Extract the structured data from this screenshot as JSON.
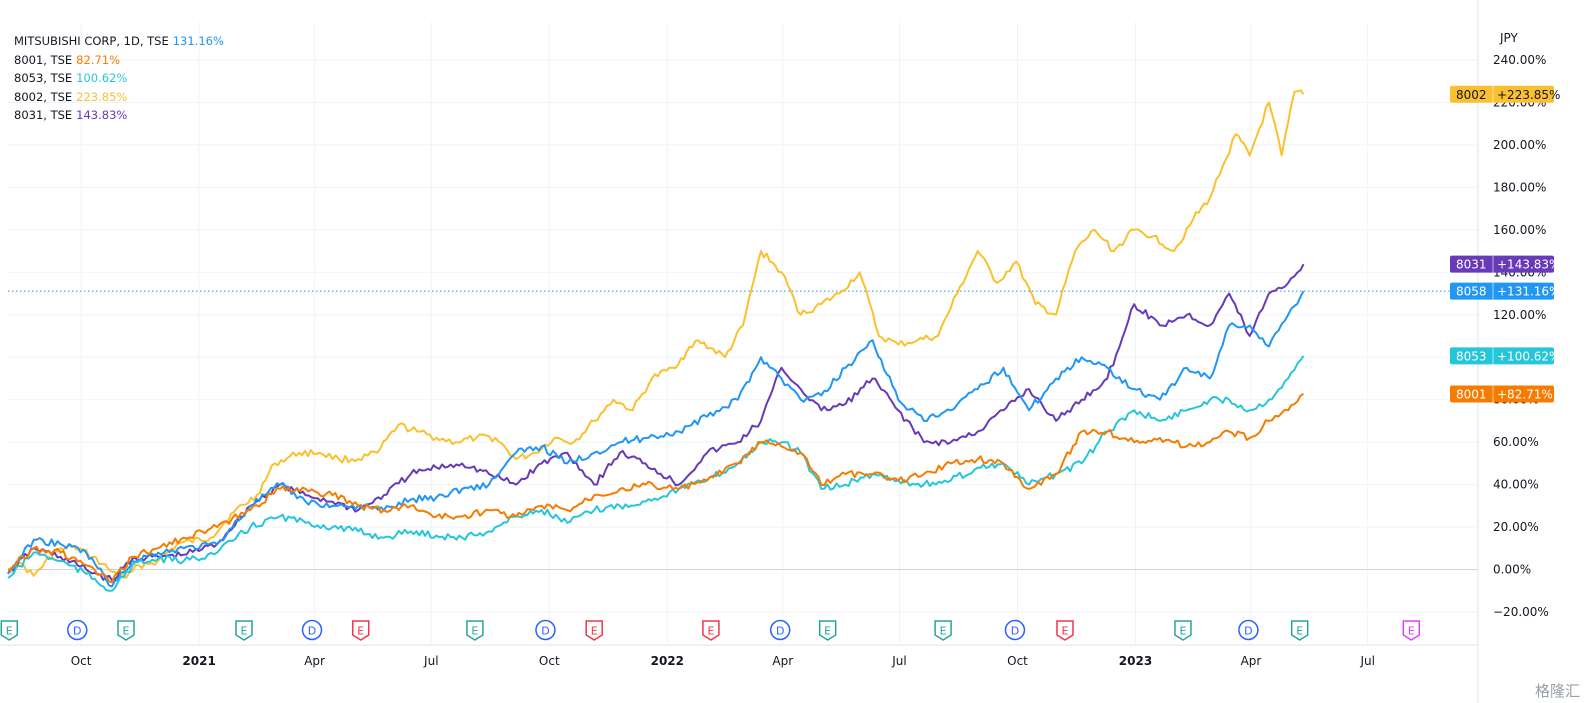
{
  "colors": {
    "grid": "#f0f3fa",
    "axis_text": "#131722",
    "zero_line": "#d0d3da",
    "dotted_line": "#2196f3",
    "earnings_icon": "#26a69a",
    "earnings_icon_red": "#f23645",
    "earnings_icon_pink": "#e040fb",
    "dividend_icon": "#2962ff",
    "watermark": "#9aa0aa"
  },
  "legend": [
    {
      "label": "MITSUBISHI CORP, 1D, TSE",
      "value": "131.16%",
      "color": "#2196f3"
    },
    {
      "label": "8001, TSE",
      "value": "82.71%",
      "color": "#f57c00"
    },
    {
      "label": "8053, TSE",
      "value": "100.62%",
      "color": "#26c6da"
    },
    {
      "label": "8002, TSE",
      "value": "223.85%",
      "color": "#fbc02d"
    },
    {
      "label": "8031, TSE",
      "value": "143.83%",
      "color": "#673ab7"
    }
  ],
  "axis": {
    "currency": "JPY"
  },
  "watermark": "格隆汇",
  "chart_data": {
    "type": "line",
    "title": "",
    "xlabel": "",
    "ylabel": "",
    "y_unit": "%",
    "ylim": [
      -25,
      240
    ],
    "y_ticks": [
      {
        "value": 240,
        "label": "240.00%"
      },
      {
        "value": 220,
        "label": "220.00%"
      },
      {
        "value": 200,
        "label": "200.00%"
      },
      {
        "value": 180,
        "label": "180.00%"
      },
      {
        "value": 160,
        "label": "160.00%"
      },
      {
        "value": 140,
        "label": "140.00%"
      },
      {
        "value": 120,
        "label": "120.00%"
      },
      {
        "value": 100,
        "label": "100.00%"
      },
      {
        "value": 80,
        "label": "80.00%"
      },
      {
        "value": 60,
        "label": "60.00%"
      },
      {
        "value": 40,
        "label": "40.00%"
      },
      {
        "value": 20,
        "label": "20.00%"
      },
      {
        "value": 0,
        "label": "0.00%"
      },
      {
        "value": -20,
        "label": "−20.00%"
      }
    ],
    "xlim": [
      "2020-08-05",
      "2023-09-25"
    ],
    "x_ticks": [
      {
        "date": "2020-10-01",
        "label": "Oct",
        "bold": false
      },
      {
        "date": "2021-01-01",
        "label": "2021",
        "bold": true
      },
      {
        "date": "2021-04-01",
        "label": "Apr",
        "bold": false
      },
      {
        "date": "2021-07-01",
        "label": "Jul",
        "bold": false
      },
      {
        "date": "2021-10-01",
        "label": "Oct",
        "bold": false
      },
      {
        "date": "2022-01-01",
        "label": "2022",
        "bold": true
      },
      {
        "date": "2022-04-01",
        "label": "Apr",
        "bold": false
      },
      {
        "date": "2022-07-01",
        "label": "Jul",
        "bold": false
      },
      {
        "date": "2022-10-01",
        "label": "Oct",
        "bold": false
      },
      {
        "date": "2023-01-01",
        "label": "2023",
        "bold": true
      },
      {
        "date": "2023-04-01",
        "label": "Apr",
        "bold": false
      },
      {
        "date": "2023-07-01",
        "label": "Jul",
        "bold": false
      }
    ],
    "grid": true,
    "reference_line": {
      "value": 131.16,
      "style": "dotted"
    },
    "series": [
      {
        "key": "8002",
        "color": "#fbc02d",
        "badge_label": "8002",
        "badge_value": "+223.85%",
        "x": [
          "2020-08-05",
          "2020-08-15",
          "2020-08-25",
          "2020-09-10",
          "2020-09-25",
          "2020-10-10",
          "2020-10-25",
          "2020-11-05",
          "2020-11-15",
          "2020-11-30",
          "2020-12-15",
          "2021-01-10",
          "2021-01-28",
          "2021-02-15",
          "2021-03-01",
          "2021-03-20",
          "2021-04-05",
          "2021-04-20",
          "2021-05-05",
          "2021-05-20",
          "2021-06-05",
          "2021-06-20",
          "2021-07-05",
          "2021-07-20",
          "2021-08-05",
          "2021-08-20",
          "2021-09-05",
          "2021-09-20",
          "2021-10-05",
          "2021-10-20",
          "2021-11-05",
          "2021-11-20",
          "2021-12-05",
          "2021-12-20",
          "2022-01-05",
          "2022-01-25",
          "2022-02-15",
          "2022-03-01",
          "2022-03-15",
          "2022-03-31",
          "2022-04-15",
          "2022-05-01",
          "2022-05-15",
          "2022-05-31",
          "2022-06-15",
          "2022-06-30",
          "2022-07-15",
          "2022-07-31",
          "2022-08-15",
          "2022-08-31",
          "2022-09-15",
          "2022-09-30",
          "2022-10-15",
          "2022-10-31",
          "2022-11-15",
          "2022-11-30",
          "2022-12-15",
          "2022-12-31",
          "2023-01-15",
          "2023-01-31",
          "2023-02-15",
          "2023-02-28",
          "2023-03-10",
          "2023-03-20",
          "2023-03-31",
          "2023-04-15",
          "2023-04-25",
          "2023-05-05",
          "2023-05-12"
        ],
        "y": [
          -1,
          3,
          -3,
          8,
          11,
          6,
          -1,
          -4,
          2,
          4,
          12,
          15,
          27,
          35,
          50,
          55,
          55,
          52,
          52,
          55,
          68,
          65,
          62,
          60,
          62,
          62,
          52,
          55,
          62,
          60,
          70,
          80,
          75,
          90,
          95,
          108,
          100,
          115,
          150,
          140,
          120,
          125,
          130,
          140,
          110,
          106,
          108,
          110,
          130,
          150,
          135,
          145,
          125,
          120,
          150,
          160,
          150,
          160,
          157,
          150,
          165,
          175,
          190,
          205,
          195,
          220,
          195,
          225,
          223.85
        ]
      },
      {
        "key": "8031",
        "color": "#673ab7",
        "badge_label": "8031",
        "badge_value": "+143.83%",
        "x": [
          "2020-08-05",
          "2020-08-25",
          "2020-09-15",
          "2020-10-05",
          "2020-10-25",
          "2020-11-10",
          "2020-11-30",
          "2020-12-20",
          "2021-01-15",
          "2021-02-10",
          "2021-03-05",
          "2021-03-25",
          "2021-04-15",
          "2021-05-05",
          "2021-05-25",
          "2021-06-15",
          "2021-07-05",
          "2021-07-25",
          "2021-08-15",
          "2021-09-05",
          "2021-09-25",
          "2021-10-15",
          "2021-11-05",
          "2021-11-25",
          "2021-12-15",
          "2022-01-10",
          "2022-02-01",
          "2022-02-25",
          "2022-03-15",
          "2022-03-31",
          "2022-04-15",
          "2022-05-01",
          "2022-05-20",
          "2022-06-10",
          "2022-06-30",
          "2022-07-20",
          "2022-08-10",
          "2022-08-31",
          "2022-09-20",
          "2022-10-10",
          "2022-10-31",
          "2022-11-20",
          "2022-12-10",
          "2022-12-31",
          "2023-01-20",
          "2023-02-10",
          "2023-02-28",
          "2023-03-15",
          "2023-03-31",
          "2023-04-15",
          "2023-04-30",
          "2023-05-12"
        ],
        "y": [
          -2,
          10,
          6,
          0,
          -5,
          5,
          6,
          7,
          12,
          30,
          40,
          35,
          32,
          28,
          35,
          45,
          48,
          50,
          45,
          40,
          50,
          55,
          40,
          55,
          50,
          40,
          55,
          60,
          70,
          95,
          85,
          75,
          78,
          90,
          75,
          60,
          60,
          65,
          75,
          85,
          70,
          80,
          90,
          125,
          115,
          120,
          115,
          130,
          110,
          130,
          135,
          143.83
        ]
      },
      {
        "key": "8058",
        "color": "#2196f3",
        "badge_label": "8058",
        "badge_value": "+131.16%",
        "x": [
          "2020-08-05",
          "2020-08-25",
          "2020-09-15",
          "2020-10-05",
          "2020-10-25",
          "2020-11-10",
          "2020-11-30",
          "2020-12-20",
          "2021-01-15",
          "2021-02-10",
          "2021-03-05",
          "2021-03-25",
          "2021-04-15",
          "2021-05-05",
          "2021-05-25",
          "2021-06-15",
          "2021-07-05",
          "2021-07-25",
          "2021-08-15",
          "2021-09-05",
          "2021-09-25",
          "2021-10-15",
          "2021-11-05",
          "2021-11-25",
          "2021-12-15",
          "2022-01-10",
          "2022-02-01",
          "2022-02-25",
          "2022-03-15",
          "2022-03-31",
          "2022-04-15",
          "2022-05-01",
          "2022-05-20",
          "2022-06-10",
          "2022-06-30",
          "2022-07-20",
          "2022-08-10",
          "2022-08-31",
          "2022-09-20",
          "2022-10-10",
          "2022-10-31",
          "2022-11-20",
          "2022-12-10",
          "2022-12-31",
          "2023-01-20",
          "2023-02-10",
          "2023-02-28",
          "2023-03-15",
          "2023-03-31",
          "2023-04-15",
          "2023-04-30",
          "2023-05-12"
        ],
        "y": [
          -2,
          14,
          12,
          8,
          -8,
          4,
          8,
          10,
          12,
          30,
          40,
          32,
          30,
          30,
          28,
          33,
          34,
          38,
          40,
          55,
          58,
          50,
          55,
          60,
          62,
          65,
          72,
          80,
          100,
          90,
          80,
          82,
          95,
          108,
          80,
          70,
          75,
          85,
          95,
          75,
          90,
          100,
          95,
          85,
          80,
          95,
          90,
          115,
          115,
          105,
          120,
          131.16
        ]
      },
      {
        "key": "8053",
        "color": "#26c6da",
        "badge_label": "8053",
        "badge_value": "+100.62%",
        "x": [
          "2020-08-05",
          "2020-08-25",
          "2020-09-15",
          "2020-10-05",
          "2020-10-25",
          "2020-11-10",
          "2020-11-30",
          "2020-12-20",
          "2021-01-15",
          "2021-02-10",
          "2021-03-05",
          "2021-03-25",
          "2021-04-15",
          "2021-05-05",
          "2021-05-25",
          "2021-06-15",
          "2021-07-05",
          "2021-07-25",
          "2021-08-15",
          "2021-09-05",
          "2021-09-25",
          "2021-10-15",
          "2021-11-05",
          "2021-11-25",
          "2021-12-15",
          "2022-01-10",
          "2022-02-01",
          "2022-02-25",
          "2022-03-15",
          "2022-03-31",
          "2022-04-15",
          "2022-05-01",
          "2022-05-20",
          "2022-06-10",
          "2022-06-30",
          "2022-07-20",
          "2022-08-10",
          "2022-08-31",
          "2022-09-20",
          "2022-10-10",
          "2022-10-31",
          "2022-11-20",
          "2022-12-10",
          "2022-12-31",
          "2023-01-20",
          "2023-02-10",
          "2023-02-28",
          "2023-03-15",
          "2023-03-31",
          "2023-04-15",
          "2023-04-30",
          "2023-05-12"
        ],
        "y": [
          -4,
          8,
          4,
          -2,
          -10,
          2,
          5,
          4,
          8,
          20,
          25,
          22,
          20,
          18,
          15,
          18,
          16,
          15,
          18,
          25,
          28,
          22,
          28,
          30,
          32,
          38,
          42,
          50,
          60,
          60,
          55,
          38,
          40,
          45,
          42,
          40,
          42,
          48,
          50,
          40,
          45,
          50,
          65,
          75,
          70,
          75,
          80,
          80,
          75,
          80,
          90,
          100.62
        ]
      },
      {
        "key": "8001",
        "color": "#f57c00",
        "badge_label": "8001",
        "badge_value": "+82.71%",
        "x": [
          "2020-08-05",
          "2020-08-25",
          "2020-09-15",
          "2020-10-05",
          "2020-10-25",
          "2020-11-10",
          "2020-11-30",
          "2020-12-20",
          "2021-01-15",
          "2021-02-10",
          "2021-03-05",
          "2021-03-25",
          "2021-04-15",
          "2021-05-05",
          "2021-05-25",
          "2021-06-15",
          "2021-07-05",
          "2021-07-25",
          "2021-08-15",
          "2021-09-05",
          "2021-09-25",
          "2021-10-15",
          "2021-11-05",
          "2021-11-25",
          "2021-12-15",
          "2022-01-10",
          "2022-02-01",
          "2022-02-25",
          "2022-03-15",
          "2022-03-31",
          "2022-04-15",
          "2022-05-01",
          "2022-05-20",
          "2022-06-10",
          "2022-06-30",
          "2022-07-20",
          "2022-08-10",
          "2022-08-31",
          "2022-09-20",
          "2022-10-10",
          "2022-10-31",
          "2022-11-20",
          "2022-12-10",
          "2022-12-31",
          "2023-01-20",
          "2023-02-10",
          "2023-02-28",
          "2023-03-15",
          "2023-03-31",
          "2023-04-15",
          "2023-04-30",
          "2023-05-12"
        ],
        "y": [
          0,
          10,
          8,
          2,
          -6,
          6,
          10,
          15,
          20,
          28,
          38,
          38,
          35,
          30,
          28,
          30,
          25,
          25,
          28,
          25,
          30,
          28,
          35,
          38,
          40,
          38,
          42,
          50,
          60,
          58,
          55,
          40,
          45,
          45,
          42,
          45,
          50,
          52,
          50,
          38,
          45,
          65,
          65,
          60,
          62,
          58,
          60,
          65,
          62,
          70,
          75,
          82.71
        ]
      }
    ],
    "event_markers": [
      {
        "type": "E",
        "date": "2020-08-06",
        "color": "#26a69a"
      },
      {
        "type": "D",
        "date": "2020-09-28",
        "color": "#2962ff"
      },
      {
        "type": "E",
        "date": "2020-11-05",
        "color": "#26a69a"
      },
      {
        "type": "E",
        "date": "2021-02-05",
        "color": "#26a69a"
      },
      {
        "type": "D",
        "date": "2021-03-30",
        "color": "#2962ff"
      },
      {
        "type": "E",
        "date": "2021-05-07",
        "color": "#f23645"
      },
      {
        "type": "E",
        "date": "2021-08-04",
        "color": "#26a69a"
      },
      {
        "type": "D",
        "date": "2021-09-28",
        "color": "#2962ff"
      },
      {
        "type": "E",
        "date": "2021-11-05",
        "color": "#f23645"
      },
      {
        "type": "E",
        "date": "2022-02-04",
        "color": "#f23645"
      },
      {
        "type": "D",
        "date": "2022-03-30",
        "color": "#2962ff"
      },
      {
        "type": "E",
        "date": "2022-05-06",
        "color": "#26a69a"
      },
      {
        "type": "E",
        "date": "2022-08-04",
        "color": "#26a69a"
      },
      {
        "type": "D",
        "date": "2022-09-29",
        "color": "#2962ff"
      },
      {
        "type": "E",
        "date": "2022-11-07",
        "color": "#f23645"
      },
      {
        "type": "E",
        "date": "2023-02-07",
        "color": "#26a69a"
      },
      {
        "type": "D",
        "date": "2023-03-30",
        "color": "#2962ff"
      },
      {
        "type": "E",
        "date": "2023-05-09",
        "color": "#26a69a"
      },
      {
        "type": "E",
        "date": "2023-08-04",
        "color": "#e040fb"
      }
    ]
  }
}
